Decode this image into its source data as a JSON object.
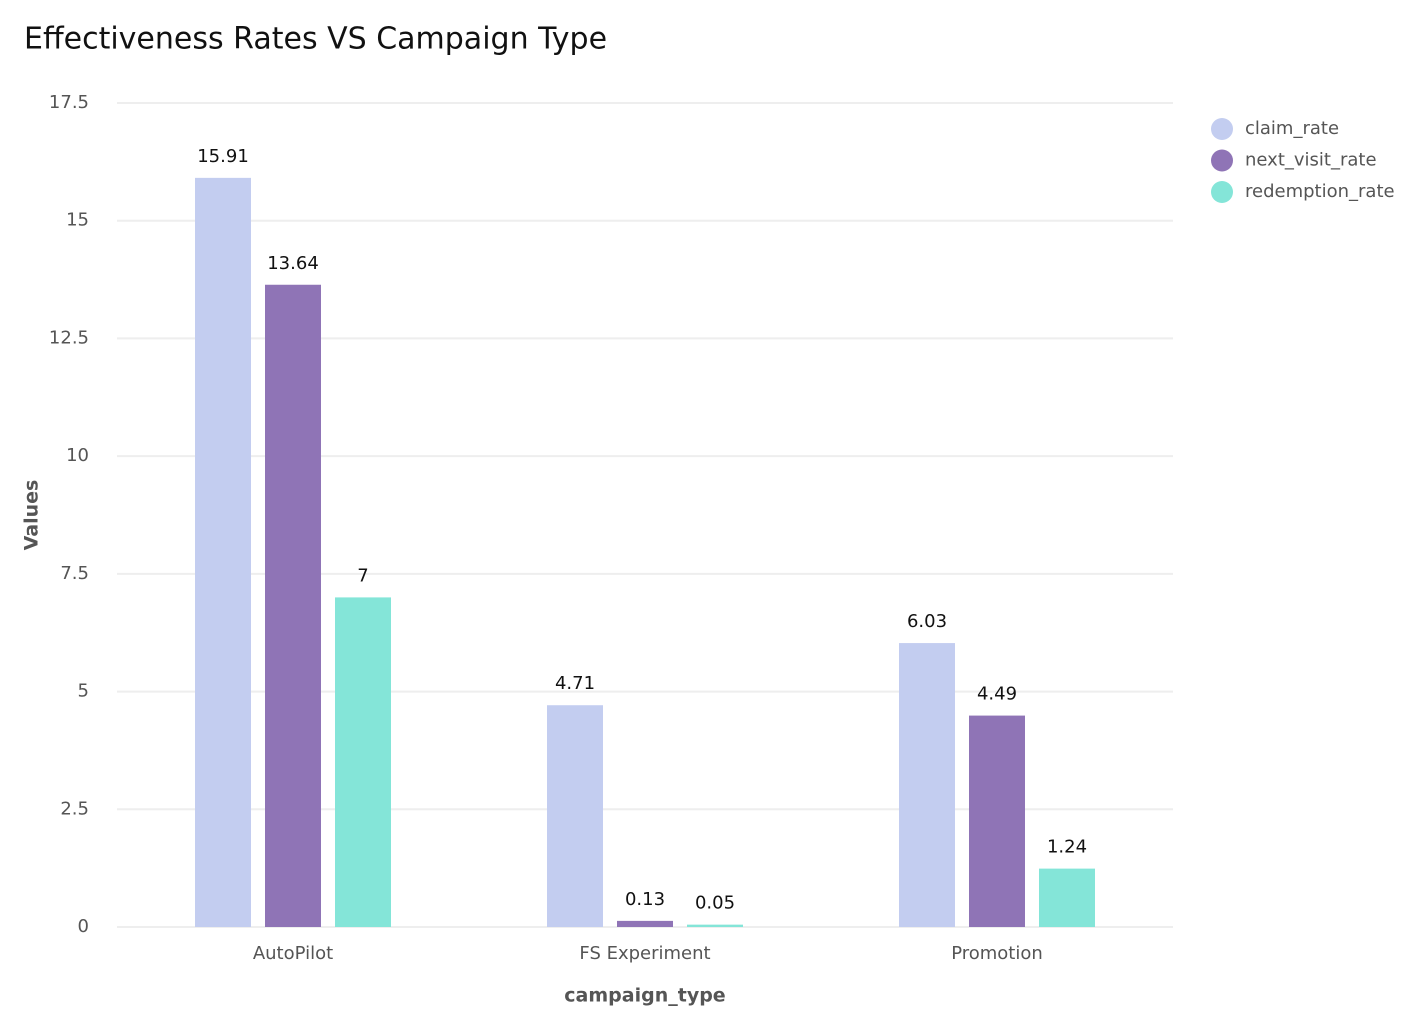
{
  "chart_data": {
    "type": "bar",
    "title": "Effectiveness Rates VS Campaign Type",
    "x_label": "campaign_type",
    "y_label": "Values",
    "categories": [
      "AutoPilot",
      "FS Experiment",
      "Promotion"
    ],
    "series": [
      {
        "name": "claim_rate",
        "color": "#c3cdf0",
        "values": [
          15.91,
          4.71,
          6.03
        ]
      },
      {
        "name": "next_visit_rate",
        "color": "#8f74b6",
        "values": [
          13.64,
          0.13,
          4.49
        ]
      },
      {
        "name": "redemption_rate",
        "color": "#84e5d8",
        "values": [
          7,
          0.05,
          1.24
        ]
      }
    ],
    "ylim": [
      0,
      17.5
    ],
    "yticks": [
      0,
      2.5,
      5,
      7.5,
      10,
      12.5,
      15,
      17.5
    ],
    "grid": true,
    "legend": "top-right"
  }
}
